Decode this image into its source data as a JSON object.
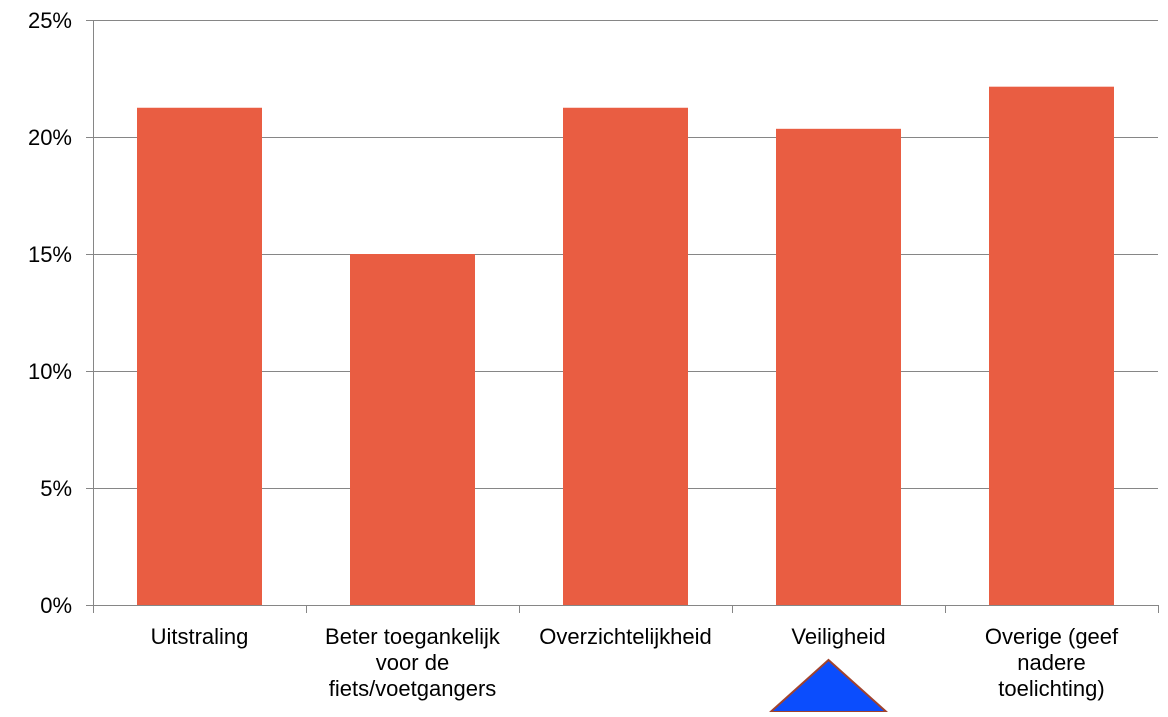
{
  "chart_data": {
    "type": "bar",
    "title": "",
    "xlabel": "",
    "ylabel": "",
    "categories": [
      [
        "Uitstraling"
      ],
      [
        "Beter toegankelijk",
        "voor de",
        "fiets/voetgangers"
      ],
      [
        "Overzichtelijkheid"
      ],
      [
        "Veiligheid"
      ],
      [
        "Overige (geef",
        "nadere",
        "toelichting)"
      ]
    ],
    "values": [
      21.25,
      15.0,
      21.25,
      20.35,
      22.15
    ],
    "value_unit": "%",
    "ylim": [
      0,
      25
    ],
    "yticks": [
      "0%",
      "5%",
      "10%",
      "15%",
      "20%",
      "25%"
    ],
    "ytick_values": [
      0,
      5,
      10,
      15,
      20,
      25
    ],
    "grid": true,
    "legend": "none",
    "colors": {
      "bar": "#e95d42",
      "grid": "#868686",
      "axis": "#868686",
      "marker_fill": "#0b4dfd",
      "marker_stroke": "#a0432e"
    },
    "annotation_marker": {
      "shape": "triangle-up",
      "category_index": 3
    }
  }
}
